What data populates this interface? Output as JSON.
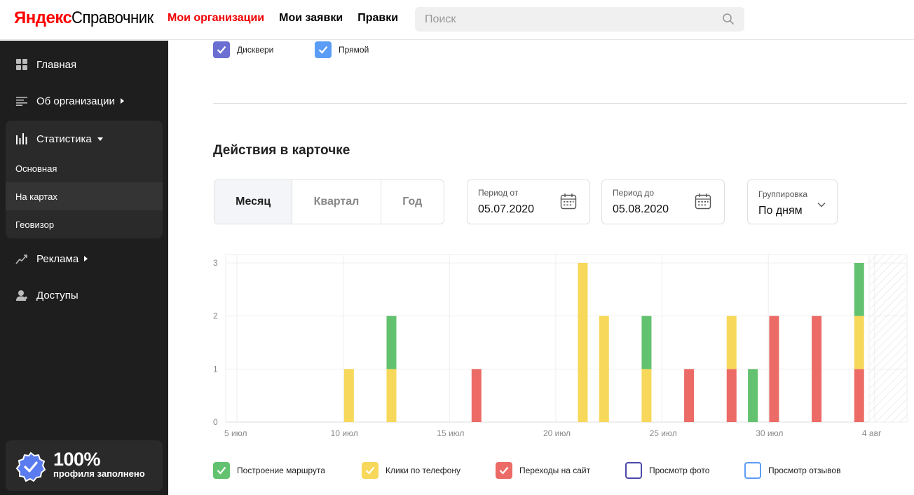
{
  "header": {
    "logo_ya": "Яндекс",
    "logo_sp": "Справочник",
    "nav": [
      "Мои организации",
      "Мои заявки",
      "Правки"
    ],
    "search_placeholder": "Поиск"
  },
  "sidebar": {
    "items": [
      {
        "label": "Главная",
        "icon": "grid-icon"
      },
      {
        "label": "Об организации",
        "icon": "list-icon"
      },
      {
        "label": "Статистика",
        "icon": "bar-chart-icon"
      },
      {
        "label": "Реклама",
        "icon": "trend-icon"
      },
      {
        "label": "Доступы",
        "icon": "user-icon"
      }
    ],
    "stat_sub": [
      "Основная",
      "На картах",
      "Геовизор"
    ],
    "active_sub": "На картах",
    "profile": {
      "percent": "100%",
      "text": "профиля заполнено"
    }
  },
  "filters": {
    "discovery": "Дисквери",
    "direct": "Прямой"
  },
  "section_title": "Действия в карточке",
  "period": {
    "tabs": [
      "Месяц",
      "Квартал",
      "Год"
    ],
    "active": "Месяц",
    "from_label": "Период от",
    "from_value": "05.07.2020",
    "to_label": "Период до",
    "to_value": "05.08.2020",
    "group_label": "Группировка",
    "group_value": "По дням"
  },
  "colors": {
    "route": "#63c26f",
    "calls": "#f7d85a",
    "site": "#ec6b66",
    "photo": "#4a48a8",
    "reviews": "#5b9cf5",
    "discovery": "#6b6fd1",
    "direct": "#5a9cf6"
  },
  "chart_data": {
    "type": "bar",
    "stacked": true,
    "x_ticks": [
      "5 июл",
      "10 июл",
      "15 июл",
      "20 июл",
      "25 июл",
      "30 июл",
      "4 авг"
    ],
    "y_ticks": [
      "0",
      "1",
      "2",
      "3"
    ],
    "ylim": [
      0,
      3
    ],
    "x": [
      "5 июл",
      "6 июл",
      "7 июл",
      "8 июл",
      "9 июл",
      "10 июл",
      "11 июл",
      "12 июл",
      "13 июл",
      "14 июл",
      "15 июл",
      "16 июл",
      "17 июл",
      "18 июл",
      "19 июл",
      "20 июл",
      "21 июл",
      "22 июл",
      "23 июл",
      "24 июл",
      "25 июл",
      "26 июл",
      "27 июл",
      "28 июл",
      "29 июл",
      "30 июл",
      "31 июл",
      "1 авг",
      "2 авг",
      "3 авг"
    ],
    "series": [
      {
        "name": "Переходы на сайт",
        "values": [
          0,
          0,
          0,
          0,
          0,
          0,
          0,
          0,
          0,
          0,
          0,
          1,
          0,
          0,
          0,
          0,
          0,
          0,
          0,
          0,
          0,
          1,
          0,
          1,
          0,
          2,
          0,
          2,
          0,
          1
        ]
      },
      {
        "name": "Клики по телефону",
        "values": [
          0,
          0,
          0,
          0,
          0,
          1,
          0,
          1,
          0,
          0,
          0,
          0,
          0,
          0,
          0,
          0,
          3,
          2,
          0,
          1,
          0,
          0,
          0,
          1,
          0,
          0,
          0,
          0,
          0,
          1
        ]
      },
      {
        "name": "Построение маршрута",
        "values": [
          0,
          0,
          0,
          0,
          0,
          0,
          0,
          1,
          0,
          0,
          0,
          0,
          0,
          0,
          0,
          0,
          0,
          0,
          0,
          1,
          0,
          0,
          0,
          0,
          1,
          0,
          0,
          0,
          0,
          1
        ]
      }
    ],
    "legend": [
      {
        "label": "Построение маршрута",
        "checked": true
      },
      {
        "label": "Клики по телефону",
        "checked": true
      },
      {
        "label": "Переходы на сайт",
        "checked": true
      },
      {
        "label": "Просмотр фото",
        "checked": false
      },
      {
        "label": "Просмотр отзывов",
        "checked": false
      }
    ]
  }
}
